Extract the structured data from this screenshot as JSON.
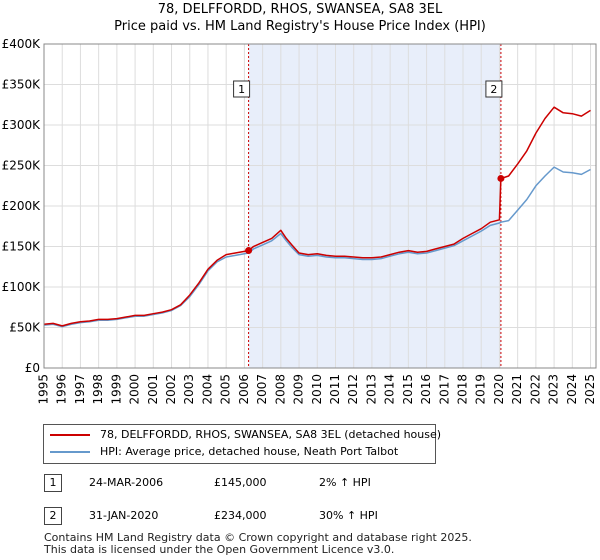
{
  "title_line1": "78, DELFFORDD, RHOS, SWANSEA, SA8 3EL",
  "title_line2": "Price paid vs. HM Land Registry's House Price Index (HPI)",
  "colors": {
    "price": "#cc0000",
    "hpi": "#6699cc",
    "shade": "#e8eefa",
    "grid": "#dddddd"
  },
  "chart_data": {
    "type": "line",
    "title": "Price paid vs. HM Land Registry's House Price Index (HPI)",
    "xlabel": "",
    "ylabel": "",
    "xlim": [
      1995,
      2025.3
    ],
    "ylim": [
      0,
      400000
    ],
    "y_ticks": [
      0,
      50000,
      100000,
      150000,
      200000,
      250000,
      300000,
      350000,
      400000
    ],
    "y_tick_labels": [
      "£0",
      "£50K",
      "£100K",
      "£150K",
      "£200K",
      "£250K",
      "£300K",
      "£350K",
      "£400K"
    ],
    "x_ticks": [
      1995,
      1996,
      1997,
      1998,
      1999,
      2000,
      2001,
      2002,
      2003,
      2004,
      2005,
      2006,
      2007,
      2008,
      2009,
      2010,
      2011,
      2012,
      2013,
      2014,
      2015,
      2016,
      2017,
      2018,
      2019,
      2020,
      2021,
      2022,
      2023,
      2024,
      2025
    ],
    "grid": true,
    "shaded_region": [
      2006.23,
      2020.08
    ],
    "series": [
      {
        "name": "78, DELFFORDD, RHOS, SWANSEA, SA8 3EL (detached house)",
        "x": [
          1995,
          1995.5,
          1996,
          1996.5,
          1997,
          1997.5,
          1998,
          1998.5,
          1999,
          1999.5,
          2000,
          2000.5,
          2001,
          2001.5,
          2002,
          2002.5,
          2003,
          2003.5,
          2004,
          2004.5,
          2005,
          2005.5,
          2006.23,
          2006.5,
          2007,
          2007.5,
          2008,
          2008.3,
          2008.6,
          2009,
          2009.5,
          2010,
          2010.5,
          2011,
          2011.5,
          2012,
          2012.5,
          2013,
          2013.5,
          2014,
          2014.5,
          2015,
          2015.5,
          2016,
          2016.5,
          2017,
          2017.5,
          2018,
          2018.5,
          2019,
          2019.5,
          2020.0,
          2020.08,
          2020.5,
          2021,
          2021.5,
          2022,
          2022.5,
          2023,
          2023.5,
          2024,
          2024.5,
          2025
        ],
        "values": [
          54000,
          55000,
          52000,
          55000,
          57000,
          58000,
          60000,
          60000,
          61000,
          63000,
          65000,
          65000,
          67000,
          69000,
          72000,
          78000,
          90000,
          105000,
          122000,
          133000,
          140000,
          142000,
          145000,
          150000,
          155000,
          160000,
          170000,
          160000,
          152000,
          142000,
          140000,
          141000,
          139000,
          138000,
          138000,
          137000,
          136000,
          136000,
          137000,
          140000,
          143000,
          145000,
          143000,
          144000,
          147000,
          150000,
          153000,
          160000,
          166000,
          172000,
          180000,
          183000,
          234000,
          237000,
          252000,
          268000,
          290000,
          308000,
          322000,
          315000,
          314000,
          311000,
          318000
        ]
      },
      {
        "name": "HPI: Average price, detached house, Neath Port Talbot",
        "x": [
          1995,
          1995.5,
          1996,
          1996.5,
          1997,
          1997.5,
          1998,
          1998.5,
          1999,
          1999.5,
          2000,
          2000.5,
          2001,
          2001.5,
          2002,
          2002.5,
          2003,
          2003.5,
          2004,
          2004.5,
          2005,
          2005.5,
          2006.23,
          2006.5,
          2007,
          2007.5,
          2008,
          2008.3,
          2008.6,
          2009,
          2009.5,
          2010,
          2010.5,
          2011,
          2011.5,
          2012,
          2012.5,
          2013,
          2013.5,
          2014,
          2014.5,
          2015,
          2015.5,
          2016,
          2016.5,
          2017,
          2017.5,
          2018,
          2018.5,
          2019,
          2019.5,
          2020.0,
          2020.08,
          2020.5,
          2021,
          2021.5,
          2022,
          2022.5,
          2023,
          2023.5,
          2024,
          2024.5,
          2025
        ],
        "values": [
          53000,
          54000,
          51000,
          54000,
          56000,
          57000,
          59000,
          59000,
          60000,
          62000,
          64000,
          64000,
          66000,
          68000,
          71000,
          77000,
          88000,
          103000,
          120000,
          131000,
          137000,
          139000,
          142000,
          147000,
          152000,
          157000,
          166000,
          157000,
          149000,
          140000,
          138000,
          139000,
          137000,
          136000,
          136000,
          135000,
          134000,
          134000,
          135000,
          138000,
          141000,
          143000,
          141000,
          142000,
          145000,
          148000,
          151000,
          157000,
          163000,
          169000,
          176000,
          179000,
          180000,
          182000,
          195000,
          208000,
          225000,
          237000,
          248000,
          242000,
          241000,
          239000,
          245000
        ]
      }
    ],
    "annotations": [
      {
        "label": "1",
        "x": 2006.23,
        "y": 145000
      },
      {
        "label": "2",
        "x": 2020.08,
        "y": 234000
      }
    ]
  },
  "legend": {
    "price_label": "78, DELFFORDD, RHOS, SWANSEA, SA8 3EL (detached house)",
    "hpi_label": "HPI: Average price, detached house, Neath Port Talbot"
  },
  "sales": [
    {
      "num": "1",
      "date": "24-MAR-2006",
      "price": "£145,000",
      "hpi": "2% ↑ HPI"
    },
    {
      "num": "2",
      "date": "31-JAN-2020",
      "price": "£234,000",
      "hpi": "30% ↑ HPI"
    }
  ],
  "footer": {
    "line1": "Contains HM Land Registry data © Crown copyright and database right 2025.",
    "line2": "This data is licensed under the Open Government Licence v3.0."
  }
}
